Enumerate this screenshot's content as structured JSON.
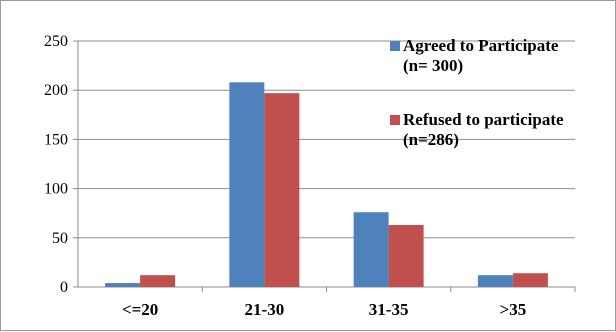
{
  "chart_data": {
    "type": "bar",
    "categories": [
      "<=20",
      "21-30",
      "31-35",
      ">35"
    ],
    "series": [
      {
        "name": "Agreed to Participate (n= 300)",
        "legend_lines": [
          "Agreed to Participate",
          "(n= 300)"
        ],
        "values": [
          4,
          208,
          76,
          12
        ],
        "color": "#4f81bd"
      },
      {
        "name": "Refused to participate (n=286)",
        "legend_lines": [
          "Refused to participate",
          "(n=286)"
        ],
        "values": [
          12,
          197,
          63,
          14
        ],
        "color": "#c0504d"
      }
    ],
    "yticks": [
      "0",
      "50",
      "100",
      "150",
      "200",
      "250"
    ],
    "ylim": [
      0,
      250
    ],
    "grid": true,
    "legend_position": "top-right",
    "xlabel": "",
    "ylabel": ""
  }
}
